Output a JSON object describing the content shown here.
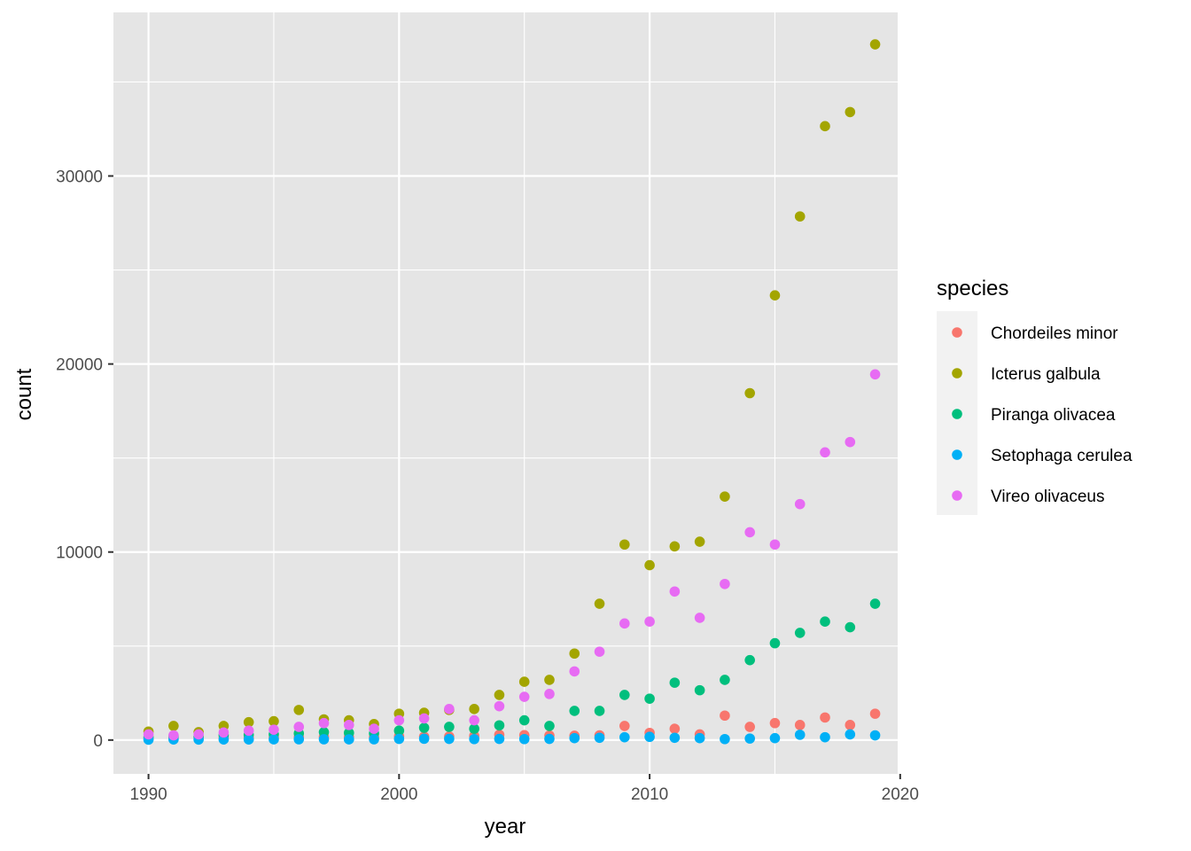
{
  "chart_data": {
    "type": "scatter",
    "xlabel": "year",
    "ylabel": "count",
    "xlim": [
      1988.6,
      2019.9
    ],
    "ylim": [
      -1800,
      38700
    ],
    "x_ticks": [
      1990,
      2000,
      2010,
      2020
    ],
    "x_tick_labels": [
      "1990",
      "2000",
      "2010",
      "2020"
    ],
    "y_ticks": [
      0,
      10000,
      20000,
      30000
    ],
    "y_tick_labels": [
      "0",
      "10000",
      "20000",
      "30000"
    ],
    "grid": true,
    "panel_background": "#e5e5e5",
    "legend": {
      "title": "species",
      "position": "right"
    },
    "series": [
      {
        "name": "Chordeiles minor",
        "color": "#F8766D",
        "x": [
          1990,
          1991,
          1992,
          1993,
          1994,
          1995,
          1996,
          1997,
          1998,
          1999,
          2000,
          2001,
          2002,
          2003,
          2004,
          2005,
          2006,
          2007,
          2008,
          2009,
          2010,
          2011,
          2012,
          2013,
          2014,
          2015,
          2016,
          2017,
          2018,
          2019
        ],
        "y": [
          80,
          100,
          90,
          110,
          120,
          130,
          150,
          170,
          160,
          150,
          200,
          180,
          190,
          220,
          280,
          260,
          240,
          230,
          250,
          750,
          380,
          600,
          300,
          1300,
          700,
          900,
          800,
          1200,
          800,
          1400
        ]
      },
      {
        "name": "Icterus galbula",
        "color": "#A3A500",
        "x": [
          1990,
          1991,
          1992,
          1993,
          1994,
          1995,
          1996,
          1997,
          1998,
          1999,
          2000,
          2001,
          2002,
          2003,
          2004,
          2005,
          2006,
          2007,
          2008,
          2009,
          2010,
          2011,
          2012,
          2013,
          2014,
          2015,
          2016,
          2017,
          2018,
          2019
        ],
        "y": [
          450,
          750,
          420,
          750,
          950,
          1000,
          1600,
          1100,
          1050,
          850,
          1400,
          1450,
          1600,
          1650,
          2400,
          3100,
          3200,
          4600,
          7250,
          10400,
          9300,
          10300,
          10550,
          12950,
          18450,
          23650,
          27850,
          32650,
          33400,
          37000
        ]
      },
      {
        "name": "Piranga olivacea",
        "color": "#00BF7D",
        "x": [
          1990,
          1991,
          1992,
          1993,
          1994,
          1995,
          1996,
          1997,
          1998,
          1999,
          2000,
          2001,
          2002,
          2003,
          2004,
          2005,
          2006,
          2007,
          2008,
          2009,
          2010,
          2011,
          2012,
          2013,
          2014,
          2015,
          2016,
          2017,
          2018,
          2019
        ],
        "y": [
          150,
          200,
          180,
          250,
          280,
          300,
          350,
          420,
          380,
          350,
          500,
          650,
          700,
          600,
          780,
          1050,
          750,
          1550,
          1550,
          2400,
          2200,
          3050,
          2650,
          3200,
          4250,
          5150,
          5700,
          6300,
          6000,
          7250
        ]
      },
      {
        "name": "Setophaga cerulea",
        "color": "#00B0F6",
        "x": [
          1990,
          1991,
          1992,
          1993,
          1994,
          1995,
          1996,
          1997,
          1998,
          1999,
          2000,
          2001,
          2002,
          2003,
          2004,
          2005,
          2006,
          2007,
          2008,
          2009,
          2010,
          2011,
          2012,
          2013,
          2014,
          2015,
          2016,
          2017,
          2018,
          2019
        ],
        "y": [
          20,
          30,
          25,
          30,
          30,
          35,
          40,
          40,
          35,
          40,
          60,
          70,
          60,
          50,
          60,
          50,
          60,
          100,
          120,
          150,
          170,
          120,
          100,
          50,
          80,
          100,
          280,
          150,
          300,
          250
        ]
      },
      {
        "name": "Vireo olivaceus",
        "color": "#E76BF3",
        "x": [
          1990,
          1991,
          1992,
          1993,
          1994,
          1995,
          1996,
          1997,
          1998,
          1999,
          2000,
          2001,
          2002,
          2003,
          2004,
          2005,
          2006,
          2007,
          2008,
          2009,
          2010,
          2011,
          2012,
          2013,
          2014,
          2015,
          2016,
          2017,
          2018,
          2019
        ],
        "y": [
          300,
          250,
          300,
          400,
          500,
          550,
          700,
          900,
          800,
          600,
          1050,
          1150,
          1650,
          1050,
          1800,
          2300,
          2450,
          3650,
          4700,
          6200,
          6300,
          7900,
          6500,
          8300,
          11050,
          10400,
          12550,
          15300,
          15850,
          19450
        ]
      }
    ]
  }
}
